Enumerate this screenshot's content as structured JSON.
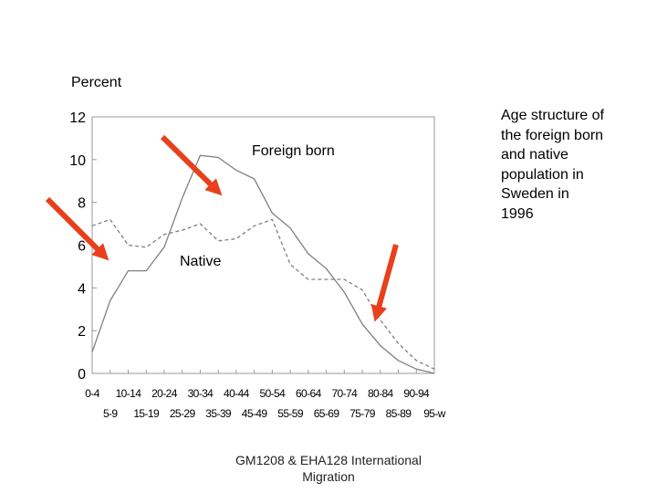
{
  "chart_data": {
    "type": "line",
    "ylabel": "Percent",
    "title": "Age structure of the foreign born and native population in Sweden in 1996",
    "ylim": [
      0,
      12
    ],
    "yticks": [
      0,
      2,
      4,
      6,
      8,
      10,
      12
    ],
    "categories": [
      "0-4",
      "5-9",
      "10-14",
      "15-19",
      "20-24",
      "25-29",
      "30-34",
      "35-39",
      "40-44",
      "45-49",
      "50-54",
      "55-59",
      "60-64",
      "65-69",
      "70-74",
      "75-79",
      "80-84",
      "85-89",
      "90-94",
      "95-w"
    ],
    "series": [
      {
        "name": "Foreign born",
        "style": "solid",
        "values": [
          1.0,
          3.4,
          4.8,
          4.8,
          5.9,
          8.2,
          10.2,
          10.1,
          9.5,
          9.1,
          7.5,
          6.8,
          5.6,
          4.9,
          3.8,
          2.3,
          1.3,
          0.6,
          0.2,
          0.0
        ]
      },
      {
        "name": "Native",
        "style": "dashed",
        "values": [
          6.9,
          7.2,
          6.0,
          5.9,
          6.5,
          6.7,
          7.0,
          6.2,
          6.3,
          6.9,
          7.2,
          5.1,
          4.4,
          4.4,
          4.4,
          3.9,
          2.5,
          1.4,
          0.6,
          0.2
        ]
      }
    ],
    "annotations": [
      "Foreign born",
      "Native"
    ]
  },
  "caption": [
    "Age structure of",
    "the foreign born",
    "and native",
    "population in",
    "Sweden in",
    "1996"
  ],
  "footer": {
    "line1": "GM1208 & EHA128   International",
    "line2": "Migration"
  },
  "colors": {
    "arrow": "#e8401c",
    "line": "#808080",
    "axis": "#999999"
  }
}
